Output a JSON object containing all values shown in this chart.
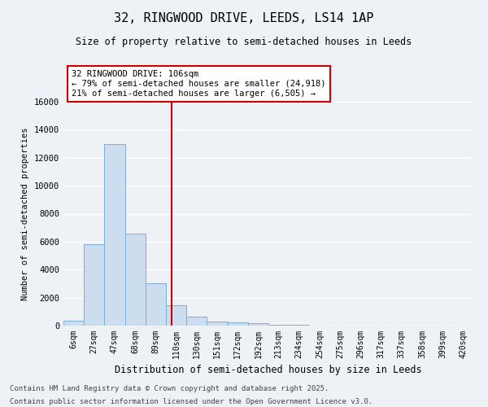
{
  "title1": "32, RINGWOOD DRIVE, LEEDS, LS14 1AP",
  "title2": "Size of property relative to semi-detached houses in Leeds",
  "xlabel": "Distribution of semi-detached houses by size in Leeds",
  "ylabel": "Number of semi-detached properties",
  "categories": [
    "6sqm",
    "27sqm",
    "47sqm",
    "68sqm",
    "89sqm",
    "110sqm",
    "130sqm",
    "151sqm",
    "172sqm",
    "192sqm",
    "213sqm",
    "234sqm",
    "254sqm",
    "275sqm",
    "296sqm",
    "317sqm",
    "337sqm",
    "358sqm",
    "399sqm",
    "420sqm"
  ],
  "values": [
    350,
    5800,
    13000,
    6600,
    3050,
    1450,
    620,
    300,
    230,
    150,
    80,
    40,
    15,
    5,
    2,
    1,
    0,
    0,
    0,
    0
  ],
  "bar_color": "#ccddf0",
  "bar_edge_color": "#7bafd4",
  "vline_color": "#cc0000",
  "annotation_title": "32 RINGWOOD DRIVE: 106sqm",
  "annotation_line1": "← 79% of semi-detached houses are smaller (24,918)",
  "annotation_line2": "21% of semi-detached houses are larger (6,505) →",
  "annotation_box_color": "#ffffff",
  "annotation_box_edge": "#cc0000",
  "footer1": "Contains HM Land Registry data © Crown copyright and database right 2025.",
  "footer2": "Contains public sector information licensed under the Open Government Licence v3.0.",
  "ylim": [
    0,
    16000
  ],
  "yticks": [
    0,
    2000,
    4000,
    6000,
    8000,
    10000,
    12000,
    14000,
    16000
  ],
  "background_color": "#eef2f7",
  "plot_bg_color": "#eef2f7",
  "grid_color": "#ffffff"
}
